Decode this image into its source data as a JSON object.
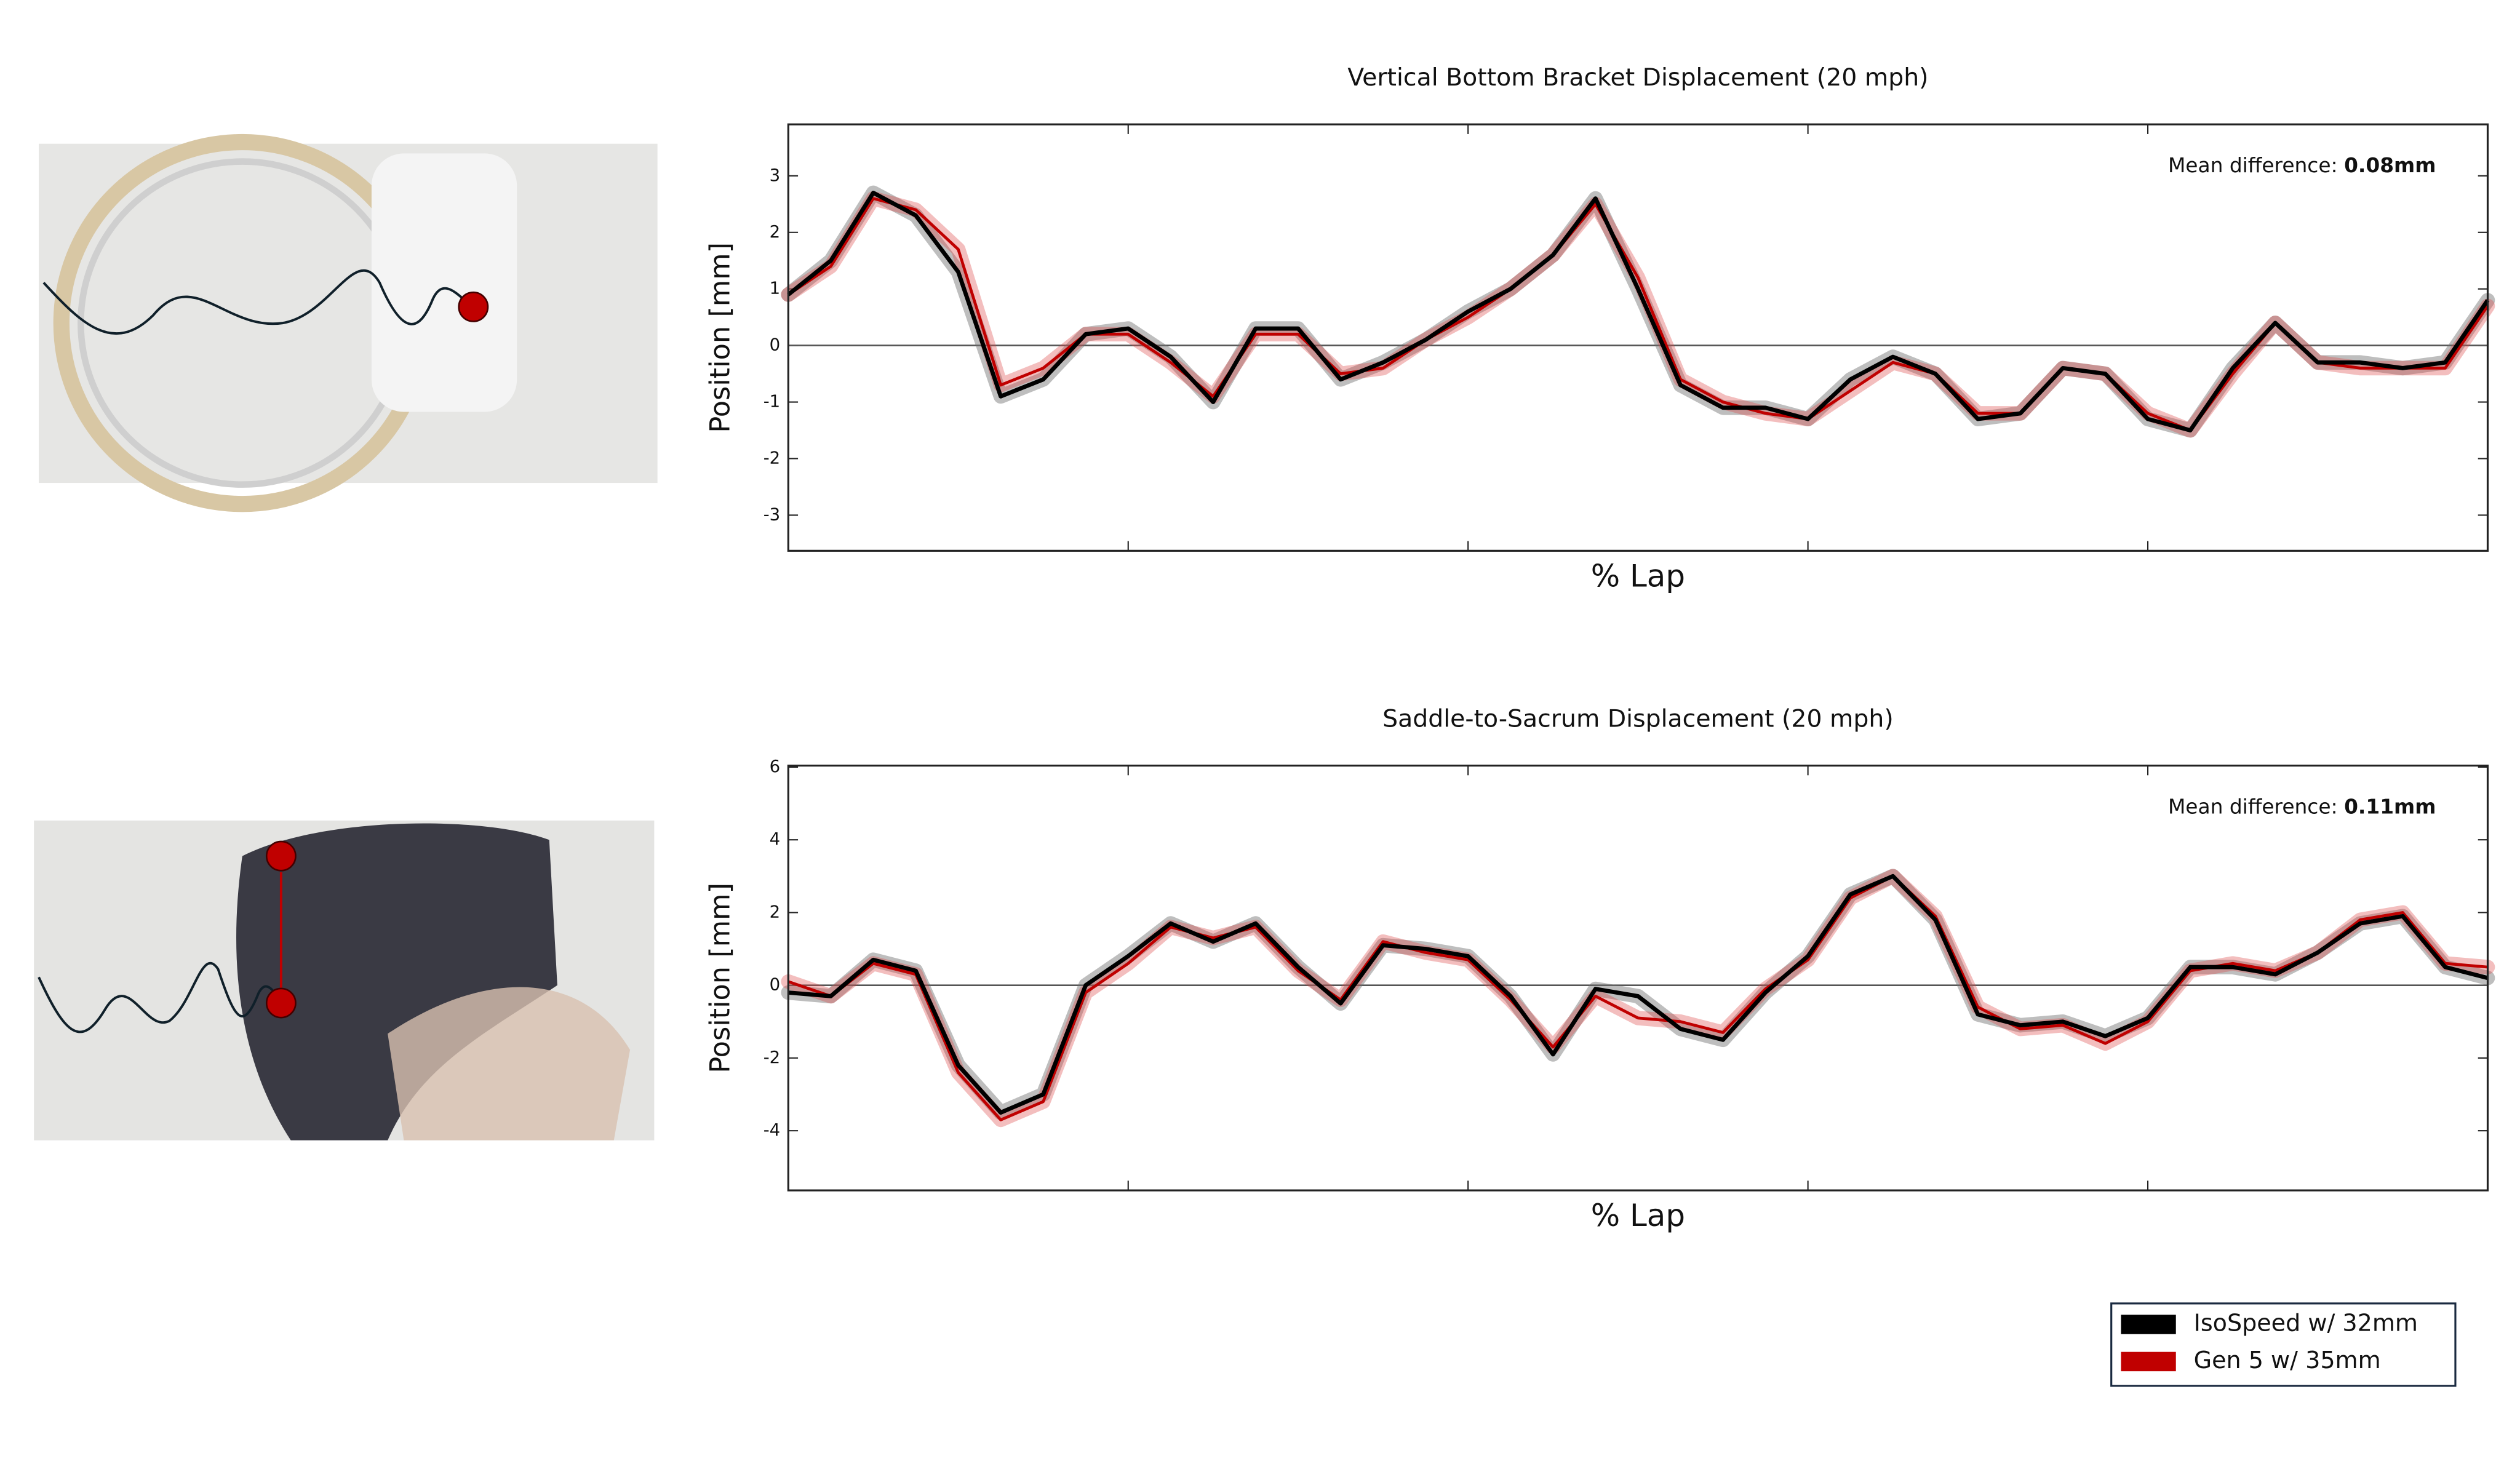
{
  "chart_data": [
    {
      "type": "line",
      "title": "Vertical Bottom Bracket Displacement (20 mph)",
      "x_label": "% Lap",
      "y_label": "Position [mm]",
      "annotation_label": "Mean difference:",
      "annotation_value": "0.08mm",
      "x": [
        0,
        2.5,
        5,
        7.5,
        10,
        12.5,
        15,
        17.5,
        20,
        22.5,
        25,
        27.5,
        30,
        32.5,
        35,
        37.5,
        40,
        42.5,
        45,
        47.5,
        50,
        52.5,
        55,
        57.5,
        60,
        62.5,
        65,
        67.5,
        70,
        72.5,
        75,
        77.5,
        80,
        82.5,
        85,
        87.5,
        90,
        92.5,
        95,
        97.5,
        100
      ],
      "xlim": [
        0,
        100
      ],
      "xticks": [
        20,
        40,
        60,
        80
      ],
      "ylim": [
        -3.63,
        3.91
      ],
      "yticks": [
        -3,
        -2,
        -1,
        0,
        1,
        2,
        3
      ],
      "series": [
        {
          "name": "IsoSpeed w/ 32mm",
          "color": "#000000",
          "values": [
            0.9,
            1.5,
            2.7,
            2.3,
            1.3,
            -0.9,
            -0.6,
            0.2,
            0.3,
            -0.2,
            -1.0,
            0.3,
            0.3,
            -0.6,
            -0.3,
            0.1,
            0.6,
            1.0,
            1.6,
            2.6,
            1.0,
            -0.7,
            -1.1,
            -1.1,
            -1.3,
            -0.6,
            -0.2,
            -0.5,
            -1.3,
            -1.2,
            -0.4,
            -0.5,
            -1.3,
            -1.5,
            -0.4,
            0.4,
            -0.3,
            -0.3,
            -0.4,
            -0.3,
            0.8
          ]
        },
        {
          "name": "Gen 5 w/ 35mm",
          "color": "#c00000",
          "values": [
            0.9,
            1.4,
            2.6,
            2.4,
            1.7,
            -0.7,
            -0.4,
            0.2,
            0.2,
            -0.3,
            -0.9,
            0.2,
            0.2,
            -0.5,
            -0.4,
            0.1,
            0.5,
            1.0,
            1.6,
            2.5,
            1.2,
            -0.6,
            -1.0,
            -1.2,
            -1.3,
            -0.8,
            -0.3,
            -0.5,
            -1.2,
            -1.2,
            -0.4,
            -0.5,
            -1.2,
            -1.5,
            -0.5,
            0.4,
            -0.3,
            -0.4,
            -0.4,
            -0.4,
            0.7
          ]
        }
      ]
    },
    {
      "type": "line",
      "title": "Saddle-to-Sacrum Displacement (20 mph)",
      "x_label": "% Lap",
      "y_label": "Position [mm]",
      "annotation_label": "Mean difference:",
      "annotation_value": "0.11mm",
      "x": [
        0,
        2.5,
        5,
        7.5,
        10,
        12.5,
        15,
        17.5,
        20,
        22.5,
        25,
        27.5,
        30,
        32.5,
        35,
        37.5,
        40,
        42.5,
        45,
        47.5,
        50,
        52.5,
        55,
        57.5,
        60,
        62.5,
        65,
        67.5,
        70,
        72.5,
        75,
        77.5,
        80,
        82.5,
        85,
        87.5,
        90,
        92.5,
        95,
        97.5,
        100
      ],
      "xlim": [
        0,
        100
      ],
      "xticks": [
        20,
        40,
        60,
        80
      ],
      "ylim": [
        -5.64,
        6.04
      ],
      "yticks": [
        -4,
        -2,
        0,
        2,
        4,
        6
      ],
      "series": [
        {
          "color": "#000000",
          "values": [
            -0.2,
            -0.3,
            0.7,
            0.4,
            -2.2,
            -3.5,
            -3.0,
            0.0,
            0.8,
            1.7,
            1.2,
            1.7,
            0.5,
            -0.5,
            1.1,
            1.0,
            0.8,
            -0.3,
            -1.9,
            -0.1,
            -0.3,
            -1.2,
            -1.5,
            -0.2,
            0.8,
            2.5,
            3.0,
            1.8,
            -0.8,
            -1.1,
            -1.0,
            -1.4,
            -0.9,
            0.5,
            0.5,
            0.3,
            0.9,
            1.7,
            1.9,
            0.5,
            0.2
          ]
        },
        {
          "color": "#c00000",
          "values": [
            0.1,
            -0.3,
            0.6,
            0.3,
            -2.4,
            -3.7,
            -3.2,
            -0.2,
            0.6,
            1.6,
            1.3,
            1.6,
            0.4,
            -0.4,
            1.2,
            0.9,
            0.7,
            -0.4,
            -1.7,
            -0.3,
            -0.9,
            -1.0,
            -1.3,
            -0.1,
            0.7,
            2.4,
            3.0,
            1.9,
            -0.6,
            -1.2,
            -1.1,
            -1.6,
            -1.0,
            0.4,
            0.6,
            0.4,
            0.9,
            1.8,
            2.0,
            0.6,
            0.5
          ]
        }
      ]
    }
  ]
}
